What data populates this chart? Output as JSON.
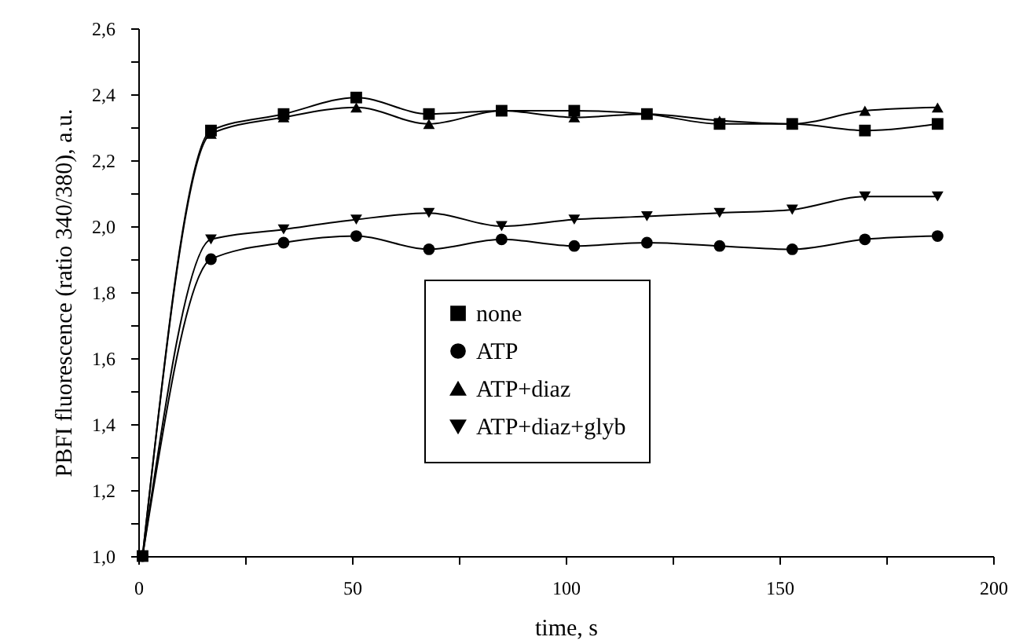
{
  "chart_data": {
    "type": "line",
    "xlabel": "time, s",
    "ylabel": "PBFI fluorescence (ratio 340/380), a.u.",
    "x": [
      1,
      17,
      34,
      51,
      68,
      85,
      102,
      119,
      136,
      153,
      170,
      187
    ],
    "series": [
      {
        "name": "none",
        "color": "#000000",
        "marker": "square",
        "values": [
          1.0,
          2.29,
          2.34,
          2.39,
          2.34,
          2.35,
          2.35,
          2.34,
          2.31,
          2.31,
          2.29,
          2.31
        ]
      },
      {
        "name": "ATP",
        "color": "#000000",
        "marker": "circle",
        "values": [
          1.0,
          1.9,
          1.95,
          1.97,
          1.93,
          1.96,
          1.94,
          1.95,
          1.94,
          1.93,
          1.96,
          1.97
        ]
      },
      {
        "name": "ATP+diaz",
        "color": "#000000",
        "marker": "triangle",
        "values": [
          1.0,
          2.28,
          2.33,
          2.36,
          2.31,
          2.35,
          2.33,
          2.34,
          2.32,
          2.31,
          2.35,
          2.36
        ]
      },
      {
        "name": "ATP+diaz+glyb",
        "color": "#000000",
        "marker": "triangle-down",
        "values": [
          1.0,
          1.96,
          1.99,
          2.02,
          2.04,
          2.0,
          2.02,
          2.03,
          2.04,
          2.05,
          2.09,
          2.09
        ]
      }
    ],
    "xlim": [
      0,
      200
    ],
    "xticks": [
      0,
      {
        "value": 25,
        "label": null
      },
      50,
      {
        "value": 75,
        "label": null
      },
      100,
      {
        "value": 125,
        "label": null
      },
      150,
      {
        "value": 175,
        "label": null
      },
      200
    ],
    "ylim": [
      1.0,
      2.6
    ],
    "yticks": [
      {
        "value": 1.0,
        "label": "1,0"
      },
      {
        "value": 1.1,
        "label": null
      },
      {
        "value": 1.2,
        "label": "1,2"
      },
      {
        "value": 1.3,
        "label": null
      },
      {
        "value": 1.4,
        "label": "1,4"
      },
      {
        "value": 1.5,
        "label": null
      },
      {
        "value": 1.6,
        "label": "1,6"
      },
      {
        "value": 1.7,
        "label": null
      },
      {
        "value": 1.8,
        "label": "1,8"
      },
      {
        "value": 1.9,
        "label": null
      },
      {
        "value": 2.0,
        "label": "2,0"
      },
      {
        "value": 2.1,
        "label": null
      },
      {
        "value": 2.2,
        "label": "2,2"
      },
      {
        "value": 2.3,
        "label": null
      },
      {
        "value": 2.4,
        "label": "2,4"
      },
      {
        "value": 2.5,
        "label": null
      },
      {
        "value": 2.6,
        "label": "2,6"
      }
    ],
    "legend": "center",
    "line_style": "solid"
  }
}
